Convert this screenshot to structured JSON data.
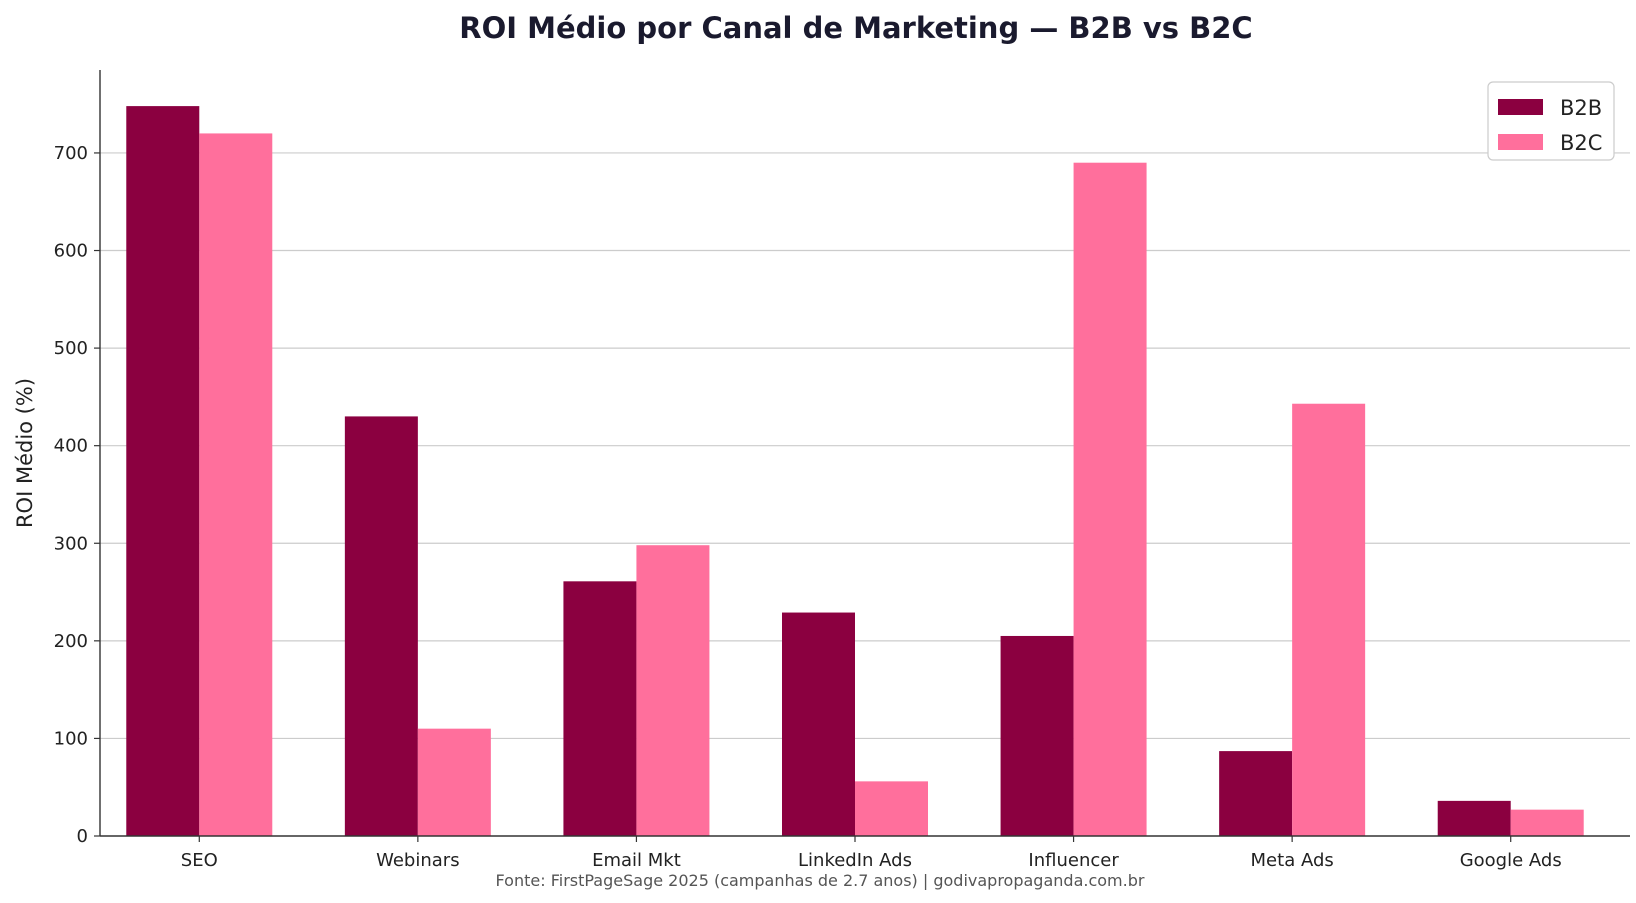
{
  "chart_data": {
    "type": "bar",
    "title": "ROI Médio por Canal de Marketing — B2B vs B2C",
    "xlabel": "",
    "ylabel": "ROI Médio (%)",
    "categories": [
      "SEO",
      "Webinars",
      "Email Mkt",
      "LinkedIn Ads",
      "Influencer",
      "Meta Ads",
      "Google Ads"
    ],
    "series": [
      {
        "name": "B2B",
        "color": "#8b0040",
        "values": [
          748,
          430,
          261,
          229,
          205,
          87,
          36
        ]
      },
      {
        "name": "B2C",
        "color": "#ff6f9c",
        "values": [
          720,
          110,
          298,
          56,
          690,
          443,
          27
        ]
      }
    ],
    "ylim": [
      0,
      785
    ],
    "yticks": [
      0,
      100,
      200,
      300,
      400,
      500,
      600,
      700
    ],
    "grid": "horizontal",
    "legend_position": "top-right",
    "source_note": "Fonte: FirstPageSage 2025 (campanhas de 2.7 anos) | godivapropaganda.com.br"
  }
}
